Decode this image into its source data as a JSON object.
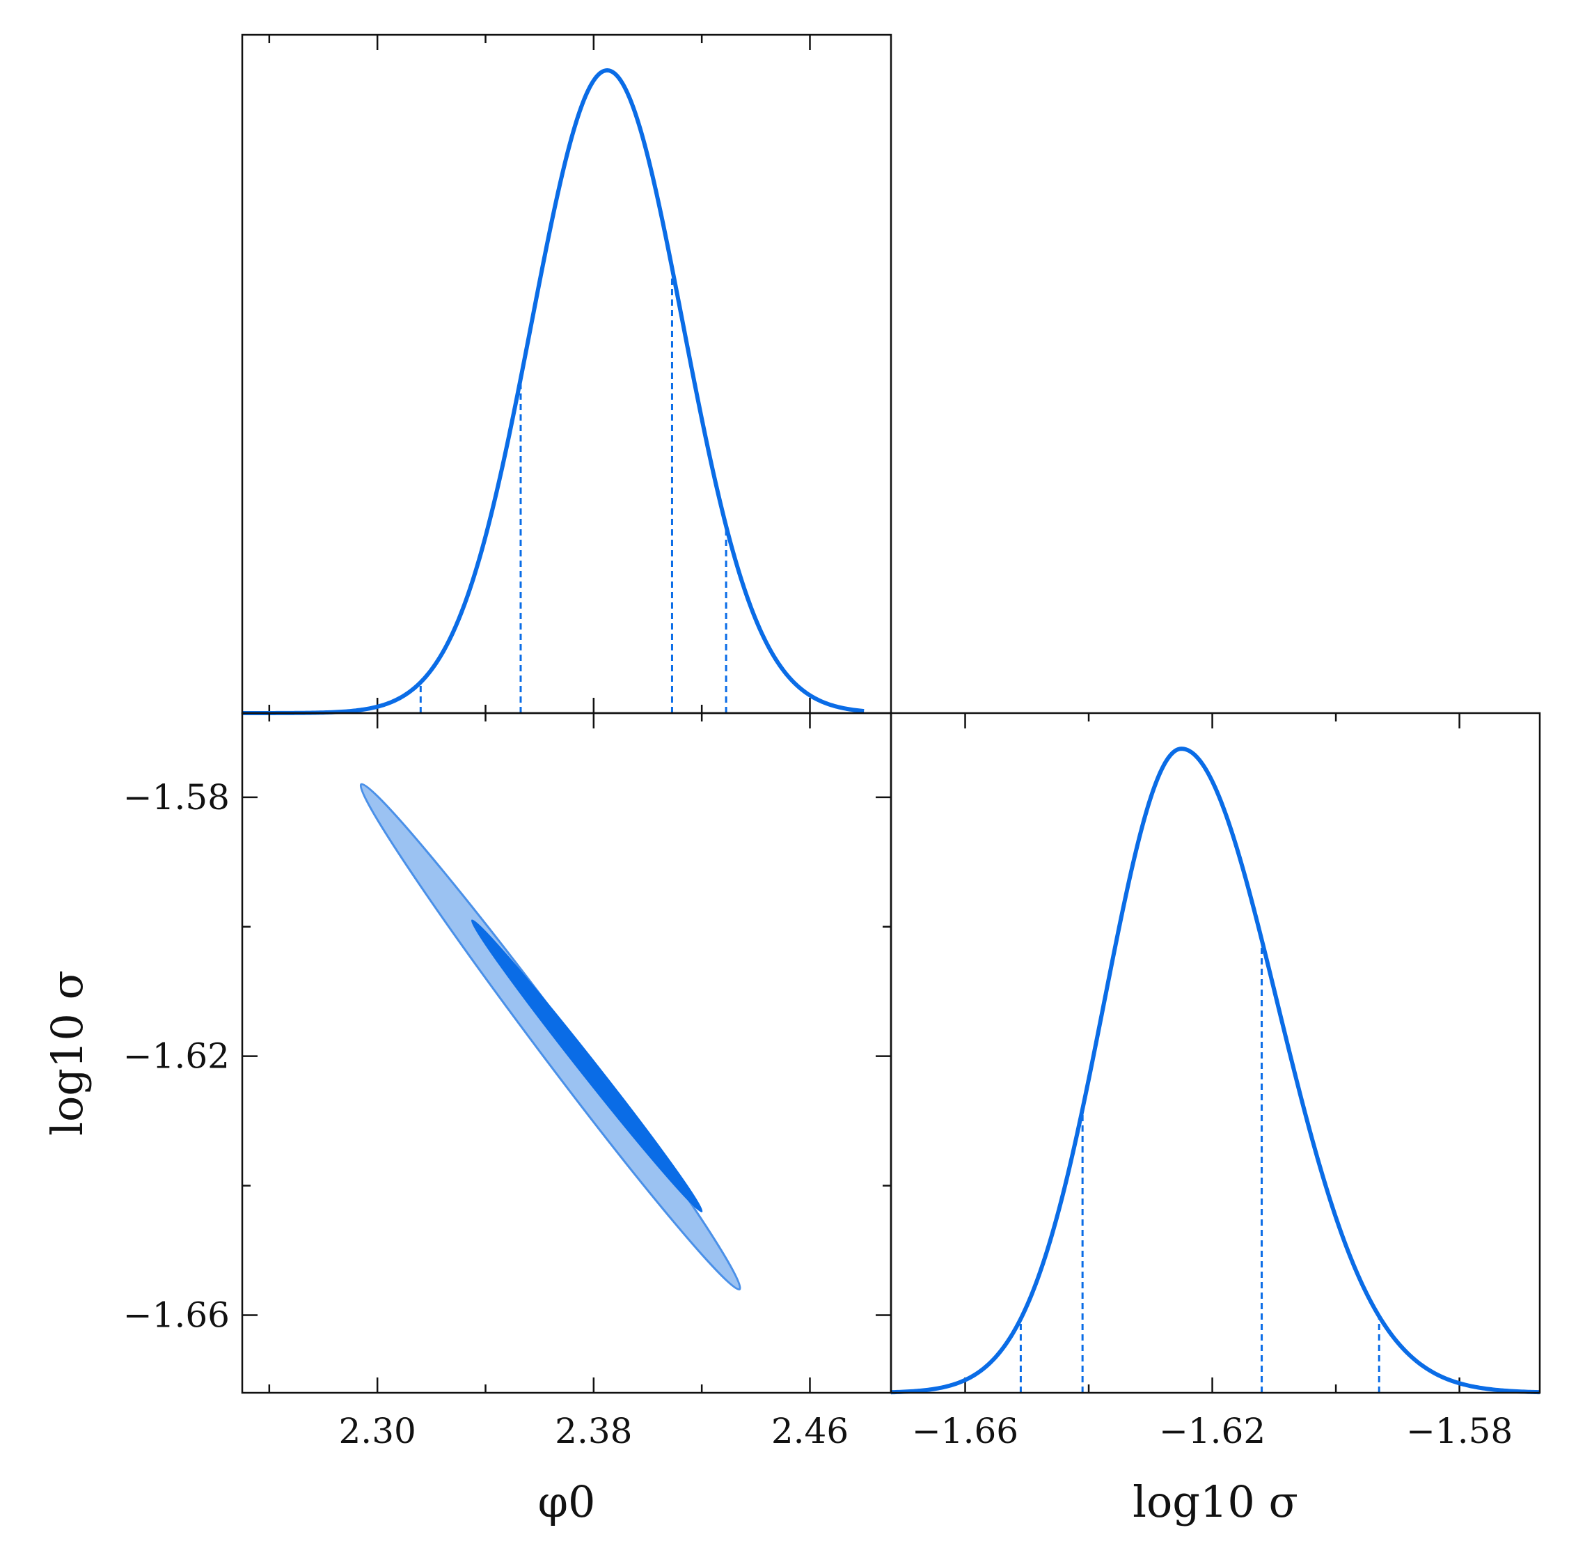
{
  "chart_data": [
    {
      "type": "line",
      "panel": "marginal-phi0",
      "title": "",
      "xlabel": "",
      "ylabel": "",
      "xlim": [
        2.25,
        2.49
      ],
      "ylim": [
        0,
        1.0
      ],
      "x_ticks": [
        2.3,
        2.38,
        2.46
      ],
      "tick_labels_shown": false,
      "density": {
        "shape": "gaussian",
        "mean": 2.385,
        "sigma": 0.028,
        "range": [
          2.25,
          2.48
        ]
      },
      "quantile_lines": [
        2.316,
        2.353,
        2.409,
        2.429
      ],
      "color": "#0a6ce6"
    },
    {
      "type": "contour",
      "panel": "joint",
      "title": "",
      "xlabel": "φ0",
      "ylabel": "log10 σ",
      "xlim": [
        2.25,
        2.49
      ],
      "ylim": [
        -1.672,
        -1.567
      ],
      "x_ticks": [
        2.3,
        2.38,
        2.46
      ],
      "x_tick_labels": [
        "2.30",
        "2.38",
        "2.46"
      ],
      "y_ticks": [
        -1.58,
        -1.62,
        -1.66
      ],
      "y_tick_labels": [
        "−1.58",
        "−1.62",
        "−1.66"
      ],
      "contours": [
        {
          "level": "outer",
          "from": [
            2.294,
            -1.578
          ],
          "to": [
            2.434,
            -1.656
          ],
          "width_ratio": 0.055,
          "fill": "#9bc2f2",
          "edge": "#4a90e8"
        },
        {
          "level": "inner",
          "from": [
            2.335,
            -1.599
          ],
          "to": [
            2.42,
            -1.644
          ],
          "width_ratio": 0.045,
          "fill": "#0a6ce6",
          "edge": "#0a6ce6"
        }
      ]
    },
    {
      "type": "line",
      "panel": "marginal-log10sigma",
      "title": "",
      "xlabel": "log10 σ",
      "ylabel": "",
      "xlim": [
        -1.672,
        -1.567
      ],
      "ylim": [
        0,
        1.0
      ],
      "x_ticks": [
        -1.66,
        -1.62,
        -1.58
      ],
      "x_tick_labels": [
        "−1.66",
        "−1.62",
        "−1.58"
      ],
      "density": {
        "shape": "skew-gaussian",
        "mode": -1.625,
        "sigma_left": 0.0125,
        "sigma_right": 0.0155,
        "range": [
          -1.672,
          -1.567
        ]
      },
      "quantile_lines": [
        -1.651,
        -1.641,
        -1.612,
        -1.593
      ],
      "color": "#0a6ce6"
    }
  ]
}
